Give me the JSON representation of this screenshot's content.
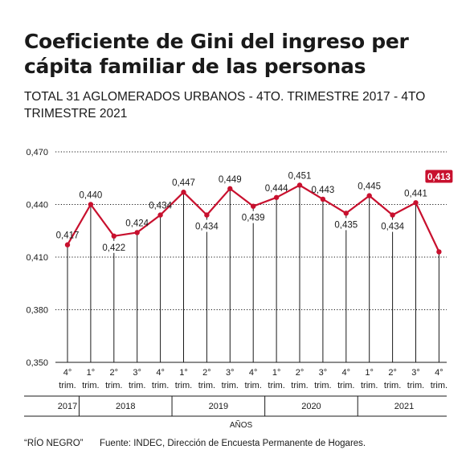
{
  "header": {
    "title": "Coeficiente de Gini del ingreso per cápita familiar de las personas",
    "subtitle": "TOTAL 31 AGLOMERADOS URBANOS - 4TO. TRIMESTRE 2017 - 4TO TRIMESTRE 2021"
  },
  "footer": {
    "credit": "“RÍO NEGRO”",
    "source": "Fuente: INDEC, Dirección de Encuesta Permanente de Hogares."
  },
  "colors": {
    "line": "#c8102e",
    "text": "#1a1a1a",
    "grid": "#1a1a1a"
  },
  "chart_data": {
    "type": "line",
    "xlabel": "AÑOS",
    "ylabel": "",
    "ylim": [
      0.35,
      0.47
    ],
    "yticks": [
      "0,350",
      "0,380",
      "0,410",
      "0,440",
      "0,470"
    ],
    "yticks_values": [
      0.35,
      0.38,
      0.41,
      0.44,
      0.47
    ],
    "categories": [
      "4° trim. 2017",
      "1° trim. 2018",
      "2° trim. 2018",
      "3° trim. 2018",
      "4° trim. 2018",
      "1° trim. 2019",
      "2° trim. 2019",
      "3° trim. 2019",
      "4° trim. 2019",
      "1° trim. 2020",
      "2° trim. 2020",
      "3° trim. 2020",
      "4° trim. 2020",
      "1° trim. 2021",
      "2° trim. 2021",
      "3° trim. 2021",
      "4° trim. 2021"
    ],
    "quarter_labels": [
      "4°",
      "1°",
      "2°",
      "3°",
      "4°",
      "1°",
      "2°",
      "3°",
      "4°",
      "1°",
      "2°",
      "3°",
      "4°",
      "1°",
      "2°",
      "3°",
      "4°"
    ],
    "trim_label": "trim.",
    "values": [
      0.417,
      0.44,
      0.422,
      0.424,
      0.434,
      0.447,
      0.434,
      0.449,
      0.439,
      0.444,
      0.451,
      0.443,
      0.435,
      0.445,
      0.434,
      0.441,
      0.413
    ],
    "value_labels": [
      "0,417",
      "0,440",
      "0,422",
      "0,424",
      "0,434",
      "0,447",
      "0,434",
      "0,449",
      "0,439",
      "0,444",
      "0,451",
      "0,443",
      "0,435",
      "0,445",
      "0,434",
      "0,441",
      "0,413"
    ],
    "highlight_index": 16,
    "years": [
      {
        "label": "2017",
        "start": 0,
        "end": 0
      },
      {
        "label": "2018",
        "start": 1,
        "end": 4
      },
      {
        "label": "2019",
        "start": 5,
        "end": 8
      },
      {
        "label": "2020",
        "start": 9,
        "end": 12
      },
      {
        "label": "2021",
        "start": 13,
        "end": 16
      }
    ]
  }
}
